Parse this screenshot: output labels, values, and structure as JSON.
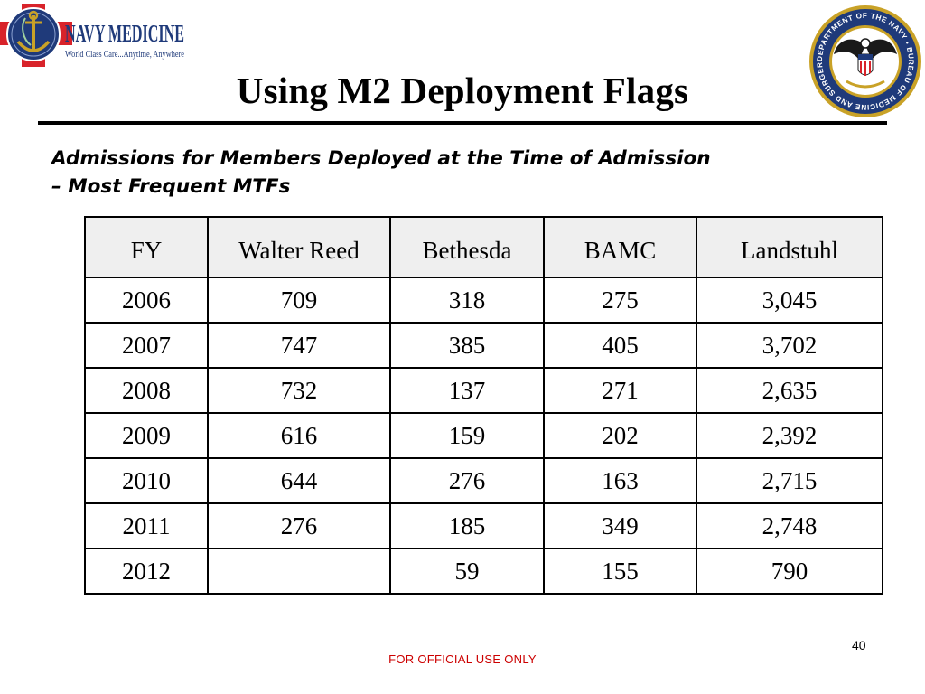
{
  "branding": {
    "logo_text": "NAVY MEDICINE",
    "logo_tagline": "World Class Care...Anytime, Anywhere",
    "seal_text": "DEPARTMENT OF THE NAVY • BUREAU OF MEDICINE AND SURGERY",
    "colors": {
      "navy": "#1f3a7a",
      "red_cross": "#d8232a",
      "gold": "#c9a227",
      "footer_red": "#cc0000"
    }
  },
  "slide": {
    "title": "Using M2 Deployment Flags",
    "subtitle": "Admissions for Members Deployed at the Time of Admission – Most Frequent MTFs",
    "page_number": "40",
    "footer": "FOR OFFICIAL USE ONLY"
  },
  "table": {
    "headers": [
      "FY",
      "Walter Reed",
      "Bethesda",
      "BAMC",
      "Landstuhl"
    ],
    "rows": [
      [
        "2006",
        "709",
        "318",
        "275",
        "3,045"
      ],
      [
        "2007",
        "747",
        "385",
        "405",
        "3,702"
      ],
      [
        "2008",
        "732",
        "137",
        "271",
        "2,635"
      ],
      [
        "2009",
        "616",
        "159",
        "202",
        "2,392"
      ],
      [
        "2010",
        "644",
        "276",
        "163",
        "2,715"
      ],
      [
        "2011",
        "276",
        "185",
        "349",
        "2,748"
      ],
      [
        "2012",
        "",
        "59",
        "155",
        "790"
      ]
    ]
  }
}
